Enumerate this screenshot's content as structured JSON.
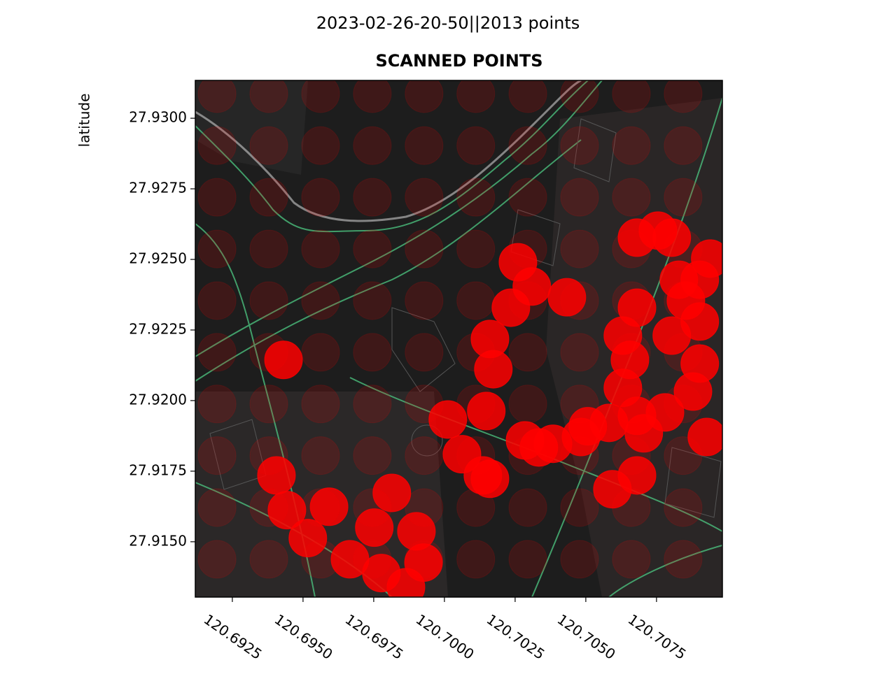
{
  "chart_data": {
    "type": "scatter",
    "suptitle": "2023-02-26-20-50||2013 points",
    "title": "SCANNED POINTS",
    "y_label": "latitude",
    "xlim": [
      120.69119,
      120.70983
    ],
    "ylim": [
      27.91304,
      27.93134
    ],
    "xticks": [
      {
        "value": 120.6925,
        "label": "120.6925"
      },
      {
        "value": 120.695,
        "label": "120.6950"
      },
      {
        "value": 120.6975,
        "label": "120.6975"
      },
      {
        "value": 120.7,
        "label": "120.7000"
      },
      {
        "value": 120.7025,
        "label": "120.7025"
      },
      {
        "value": 120.705,
        "label": "120.7050"
      },
      {
        "value": 120.7075,
        "label": "120.7075"
      }
    ],
    "yticks": [
      {
        "value": 27.93,
        "label": "27.9300"
      },
      {
        "value": 27.9275,
        "label": "27.9275"
      },
      {
        "value": 27.925,
        "label": "27.9250"
      },
      {
        "value": 27.9225,
        "label": "27.9225"
      },
      {
        "value": 27.92,
        "label": "27.9200"
      },
      {
        "value": 27.9175,
        "label": "27.9175"
      },
      {
        "value": 27.915,
        "label": "27.9150"
      }
    ],
    "series": [
      {
        "color": "#ff0000",
        "opacity": 0.15,
        "x": [
          120.69196,
          120.69379,
          120.69562,
          120.69745,
          120.69928,
          120.70111,
          120.70295,
          120.70478,
          120.70661,
          120.70844,
          120.69196,
          120.69379,
          120.69562,
          120.69745,
          120.69928,
          120.70111,
          120.70295,
          120.70478,
          120.70661,
          120.70844,
          120.69196,
          120.69379,
          120.69562,
          120.69745,
          120.69928,
          120.70111,
          120.70295,
          120.70478,
          120.70661,
          120.70844,
          120.69196,
          120.69379,
          120.69562,
          120.69745,
          120.69928,
          120.70111,
          120.70295,
          120.70478,
          120.70661,
          120.70844,
          120.69196,
          120.69379,
          120.69562,
          120.69745,
          120.69928,
          120.70111,
          120.70295,
          120.70478,
          120.70661,
          120.70844,
          120.69196,
          120.69379,
          120.69562,
          120.69745,
          120.69928,
          120.70111,
          120.70295,
          120.70478,
          120.70661,
          120.70844,
          120.69196,
          120.69379,
          120.69562,
          120.69745,
          120.69928,
          120.70111,
          120.70295,
          120.70478,
          120.70661,
          120.70844,
          120.69196,
          120.69379,
          120.69562,
          120.69745,
          120.69928,
          120.70111,
          120.70295,
          120.70478,
          120.70661,
          120.70844,
          120.69196,
          120.69379,
          120.69562,
          120.69745,
          120.69928,
          120.70111,
          120.70295,
          120.70478,
          120.70661,
          120.70844,
          120.69196,
          120.69379,
          120.69562,
          120.69745,
          120.69928,
          120.70111,
          120.70295,
          120.70478,
          120.70661,
          120.70844
        ],
        "y": [
          27.93087,
          27.93087,
          27.93087,
          27.93087,
          27.93087,
          27.93087,
          27.93087,
          27.93087,
          27.93087,
          27.93087,
          27.92903,
          27.92903,
          27.92903,
          27.92903,
          27.92903,
          27.92903,
          27.92903,
          27.92903,
          27.92903,
          27.92903,
          27.9272,
          27.9272,
          27.9272,
          27.9272,
          27.9272,
          27.9272,
          27.9272,
          27.9272,
          27.9272,
          27.9272,
          27.92537,
          27.92537,
          27.92537,
          27.92537,
          27.92537,
          27.92537,
          27.92537,
          27.92537,
          27.92537,
          27.92537,
          27.92354,
          27.92354,
          27.92354,
          27.92354,
          27.92354,
          27.92354,
          27.92354,
          27.92354,
          27.92354,
          27.92354,
          27.92171,
          27.92171,
          27.92171,
          27.92171,
          27.92171,
          27.92171,
          27.92171,
          27.92171,
          27.92171,
          27.92171,
          27.91988,
          27.91988,
          27.91988,
          27.91988,
          27.91988,
          27.91988,
          27.91988,
          27.91988,
          27.91988,
          27.91988,
          27.91805,
          27.91805,
          27.91805,
          27.91805,
          27.91805,
          27.91805,
          27.91805,
          27.91805,
          27.91805,
          27.91805,
          27.91621,
          27.91621,
          27.91621,
          27.91621,
          27.91621,
          27.91621,
          27.91621,
          27.91621,
          27.91621,
          27.91621,
          27.91438,
          27.91438,
          27.91438,
          27.91438,
          27.91438,
          27.91438,
          27.91438,
          27.91438,
          27.91438,
          27.91438
        ]
      },
      {
        "color": "#ff0000",
        "opacity": 0.85,
        "x": [
          120.69431,
          120.70012,
          120.70148,
          120.70173,
          120.70161,
          120.70235,
          120.7026,
          120.70309,
          120.70433,
          120.70285,
          120.70384,
          120.70483,
          120.70582,
          120.70681,
          120.7078,
          120.70879,
          120.70928,
          120.70903,
          120.70903,
          120.70903,
          120.70829,
          120.70755,
          120.70681,
          120.70804,
          120.70681,
          120.70631,
          120.70656,
          120.70631,
          120.70594,
          120.70681,
          120.70804,
          120.70854,
          120.7094,
          120.70062,
          120.70136,
          120.70161,
          120.69814,
          120.69752,
          120.69592,
          120.69517,
          120.69443,
          120.69406,
          120.69666,
          120.69777,
          120.69864,
          120.69901,
          120.69926,
          120.70705,
          120.70507,
          120.70334
        ],
        "y": [
          27.92144,
          27.91933,
          27.91963,
          27.92111,
          27.92218,
          27.92329,
          27.9249,
          27.92404,
          27.92366,
          27.91859,
          27.91847,
          27.91871,
          27.91921,
          27.91946,
          27.91958,
          27.92032,
          27.91871,
          27.92131,
          27.9228,
          27.92428,
          27.92428,
          27.92602,
          27.92577,
          27.92577,
          27.92329,
          27.9223,
          27.92144,
          27.92045,
          27.91686,
          27.91735,
          27.9223,
          27.92354,
          27.92503,
          27.9181,
          27.91735,
          27.91723,
          27.91673,
          27.9155,
          27.91624,
          27.91513,
          27.91612,
          27.91735,
          27.91438,
          27.91389,
          27.91339,
          27.91537,
          27.91426,
          27.91884,
          27.91909,
          27.91834
        ]
      }
    ]
  }
}
